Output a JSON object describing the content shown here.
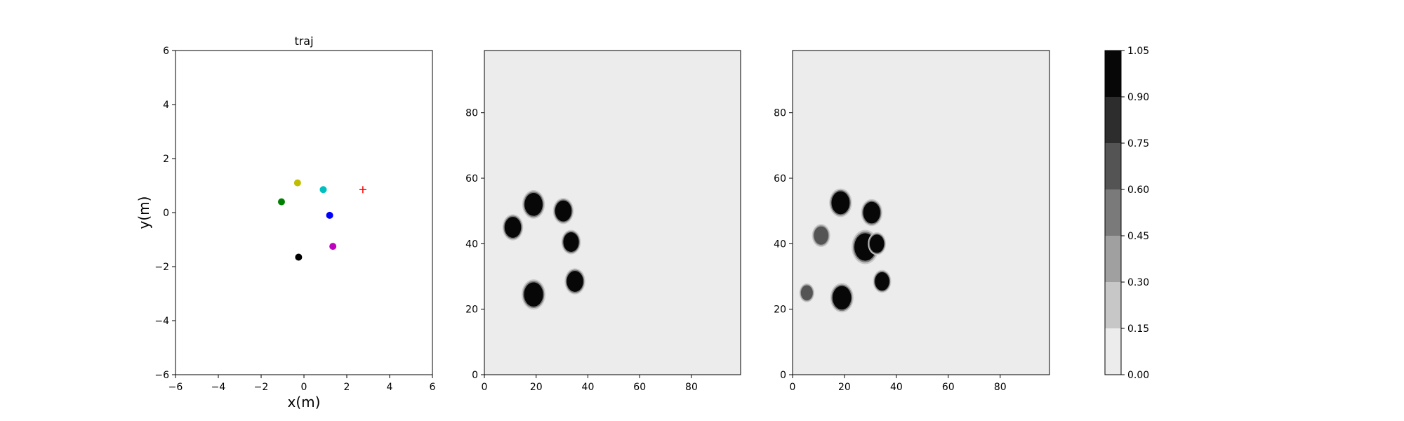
{
  "chart_data": [
    {
      "type": "scatter",
      "title": "traj",
      "xlabel": "x(m)",
      "ylabel": "y(m)",
      "xlim": [
        -6,
        6
      ],
      "ylim": [
        -6,
        6
      ],
      "xticks": [
        "−6",
        "−4",
        "−2",
        "0",
        "2",
        "4",
        "6"
      ],
      "yticks": [
        "−6",
        "−4",
        "−2",
        "0",
        "2",
        "4",
        "6"
      ],
      "grid": false,
      "points": [
        {
          "x": -0.3,
          "y": 1.1,
          "color": "#bfbf00",
          "marker": "circle"
        },
        {
          "x": 0.9,
          "y": 0.85,
          "color": "#00bfbf",
          "marker": "circle"
        },
        {
          "x": -1.05,
          "y": 0.4,
          "color": "#008000",
          "marker": "circle"
        },
        {
          "x": 1.2,
          "y": -0.1,
          "color": "#0000ff",
          "marker": "circle"
        },
        {
          "x": 1.35,
          "y": -1.25,
          "color": "#bf00bf",
          "marker": "circle"
        },
        {
          "x": -0.25,
          "y": -1.65,
          "color": "#000000",
          "marker": "circle"
        },
        {
          "x": 2.75,
          "y": 0.85,
          "color": "#ff0000",
          "marker": "plus"
        }
      ]
    },
    {
      "type": "heatmap",
      "xlim": [
        0,
        99
      ],
      "ylim": [
        0,
        99
      ],
      "xticks": [
        "0",
        "20",
        "40",
        "60",
        "80"
      ],
      "yticks": [
        "0",
        "20",
        "40",
        "60",
        "80"
      ],
      "background_value": 0.05,
      "blobs": [
        {
          "x": 19,
          "y": 52,
          "r": 3.5,
          "value": 1.0
        },
        {
          "x": 30.5,
          "y": 50,
          "r": 3.2,
          "value": 1.0
        },
        {
          "x": 11,
          "y": 45,
          "r": 3.2,
          "value": 1.0
        },
        {
          "x": 33.5,
          "y": 40.5,
          "r": 3.0,
          "value": 1.0
        },
        {
          "x": 35,
          "y": 28.5,
          "r": 3.2,
          "value": 1.0
        },
        {
          "x": 19,
          "y": 24.5,
          "r": 3.7,
          "value": 1.0
        }
      ]
    },
    {
      "type": "heatmap",
      "xlim": [
        0,
        99
      ],
      "ylim": [
        0,
        99
      ],
      "xticks": [
        "0",
        "20",
        "40",
        "60",
        "80"
      ],
      "yticks": [
        "0",
        "20",
        "40",
        "60",
        "80"
      ],
      "background_value": 0.05,
      "blobs": [
        {
          "x": 18.5,
          "y": 52.5,
          "r": 3.5,
          "value": 1.0
        },
        {
          "x": 30.5,
          "y": 49.5,
          "r": 3.3,
          "value": 1.0
        },
        {
          "x": 11,
          "y": 42.5,
          "r": 2.8,
          "value": 0.7
        },
        {
          "x": 28,
          "y": 39,
          "r": 4.2,
          "value": 0.95
        },
        {
          "x": 32.5,
          "y": 40,
          "r": 2.8,
          "value": 1.0
        },
        {
          "x": 34.5,
          "y": 28.5,
          "r": 2.8,
          "value": 1.0
        },
        {
          "x": 19,
          "y": 23.5,
          "r": 3.6,
          "value": 1.0
        },
        {
          "x": 5.5,
          "y": 25,
          "r": 2.3,
          "value": 0.6
        }
      ]
    }
  ],
  "colorbar": {
    "levels": [
      "0.00",
      "0.15",
      "0.30",
      "0.45",
      "0.60",
      "0.75",
      "0.90",
      "1.05"
    ],
    "colors": [
      "#ececec",
      "#c7c7c7",
      "#a0a0a0",
      "#7a7a7a",
      "#545454",
      "#2d2d2d",
      "#070707"
    ]
  }
}
